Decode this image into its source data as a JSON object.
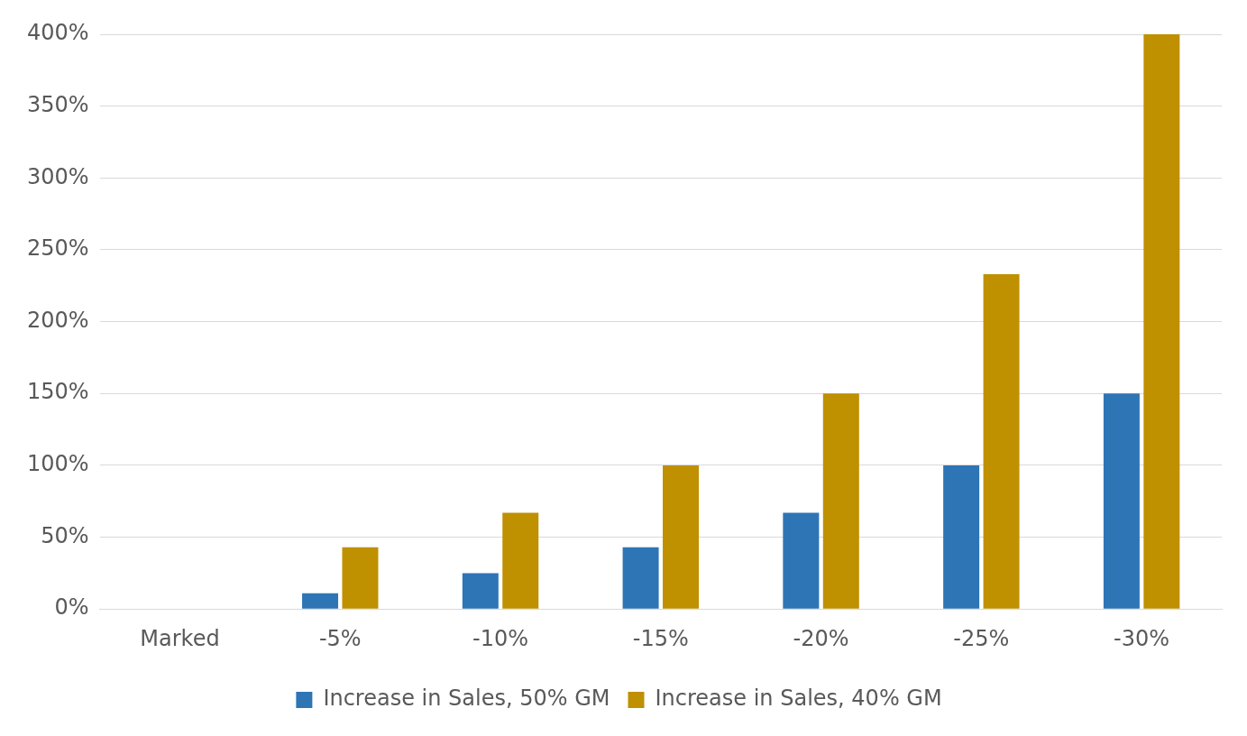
{
  "chart_data": {
    "type": "bar",
    "categories": [
      "Marked",
      "-5%",
      "-10%",
      "-15%",
      "-20%",
      "-25%",
      "-30%"
    ],
    "series": [
      {
        "name": "Increase in Sales, 50% GM",
        "color": "#2e75b6",
        "values": [
          0,
          11,
          25,
          43,
          67,
          100,
          150
        ]
      },
      {
        "name": "Increase in Sales, 40% GM",
        "color": "#bf9000",
        "values": [
          0,
          43,
          67,
          100,
          150,
          233,
          400
        ]
      }
    ],
    "ylim": [
      0,
      400
    ],
    "yticks": [
      {
        "value": 0,
        "label": "0%"
      },
      {
        "value": 50,
        "label": "50%"
      },
      {
        "value": 100,
        "label": "100%"
      },
      {
        "value": 150,
        "label": "150%"
      },
      {
        "value": 200,
        "label": "200%"
      },
      {
        "value": 250,
        "label": "250%"
      },
      {
        "value": 300,
        "label": "300%"
      },
      {
        "value": 350,
        "label": "350%"
      },
      {
        "value": 400,
        "label": "400%"
      }
    ],
    "grid": "y",
    "legend": "bottom"
  }
}
